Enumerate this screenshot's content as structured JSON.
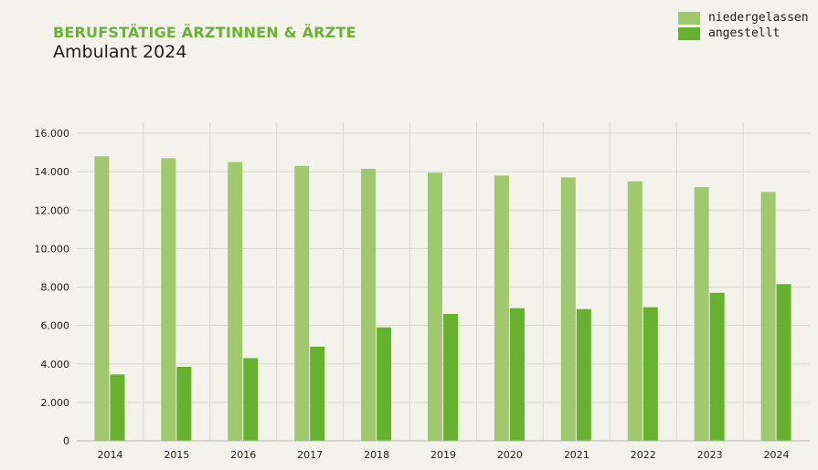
{
  "colors": {
    "niedergelassen": "#a0c96e",
    "angestellt": "#66b22f",
    "title": "#6ab234",
    "grid": "#d9d9d2",
    "axis": "#b5b5ad"
  },
  "chart_data": {
    "type": "bar",
    "title": "BERUFSTÄTIGE ÄRZTINNEN & ÄRZTE",
    "subtitle": "Ambulant 2024",
    "xlabel": "",
    "ylabel": "",
    "categories": [
      "2014",
      "2015",
      "2016",
      "2017",
      "2018",
      "2019",
      "2020",
      "2021",
      "2022",
      "2023",
      "2024"
    ],
    "series": [
      {
        "name": "niedergelassen",
        "values": [
          14800,
          14700,
          14500,
          14300,
          14150,
          13950,
          13800,
          13700,
          13500,
          13200,
          12950
        ]
      },
      {
        "name": "angestellt",
        "values": [
          3450,
          3850,
          4300,
          4900,
          5900,
          6600,
          6900,
          6850,
          6950,
          7700,
          8150
        ]
      }
    ],
    "ylim": [
      0,
      16000
    ],
    "yticks": [
      0,
      2000,
      4000,
      6000,
      8000,
      10000,
      12000,
      14000,
      16000
    ],
    "ytick_labels": [
      "0",
      "2.000",
      "4.000",
      "6.000",
      "8.000",
      "10.000",
      "12.000",
      "14.000",
      "16.000"
    ],
    "grid": true,
    "legend": "top-right"
  }
}
